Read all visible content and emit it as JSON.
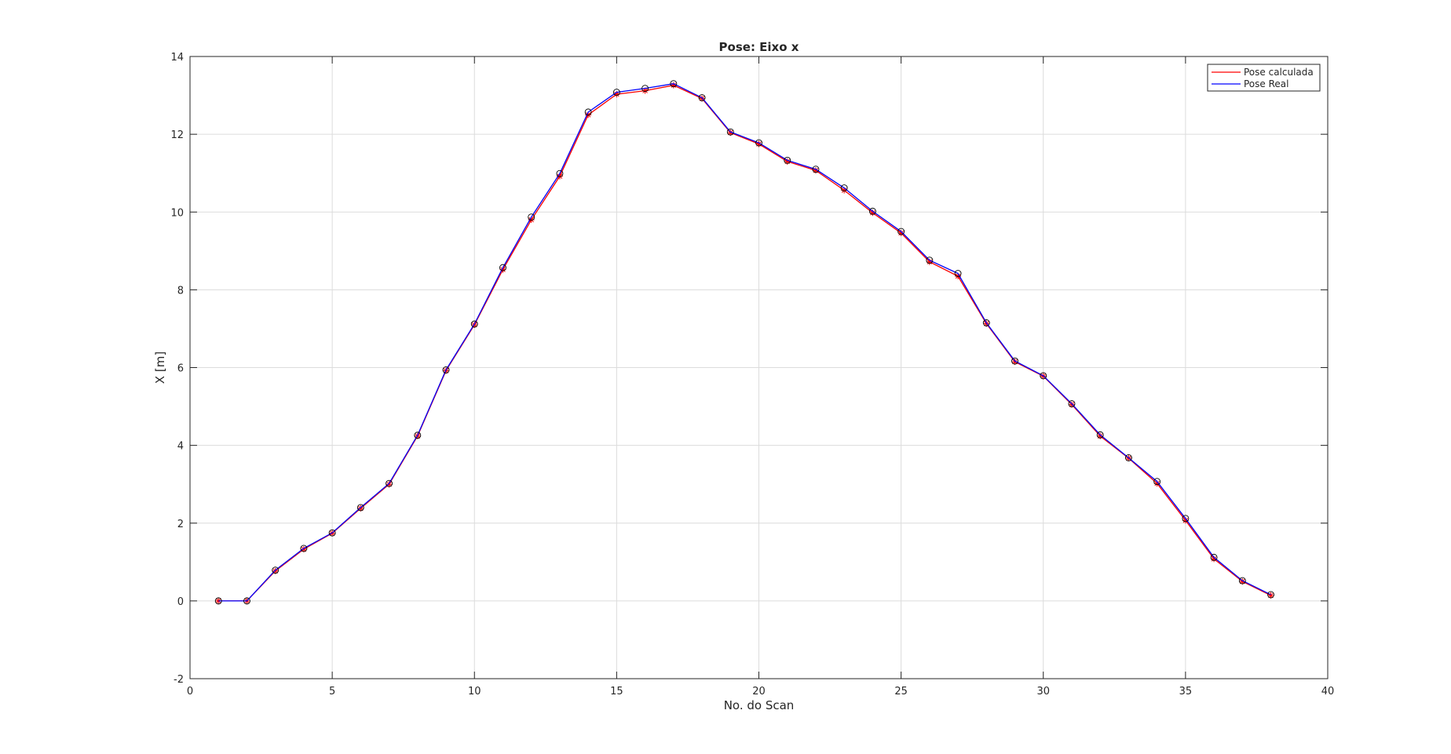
{
  "chart_data": {
    "type": "line",
    "title": "Pose: Eixo x",
    "xlabel": "No. do Scan",
    "ylabel": "X [m]",
    "xlim": [
      0,
      40
    ],
    "ylim": [
      -2,
      14
    ],
    "xticks": [
      0,
      5,
      10,
      15,
      20,
      25,
      30,
      35,
      40
    ],
    "yticks": [
      -2,
      0,
      2,
      4,
      6,
      8,
      10,
      12,
      14
    ],
    "grid": true,
    "legend_position": "top-right",
    "x": [
      1,
      2,
      3,
      4,
      5,
      6,
      7,
      8,
      9,
      10,
      11,
      12,
      13,
      14,
      15,
      16,
      17,
      18,
      19,
      20,
      21,
      22,
      23,
      24,
      25,
      26,
      27,
      28,
      29,
      30,
      31,
      32,
      33,
      34,
      35,
      36,
      37,
      38
    ],
    "series": [
      {
        "name": "Pose calculada",
        "color": "#ff0000",
        "marker": "star",
        "values": [
          0.0,
          0.0,
          0.77,
          1.33,
          1.74,
          2.38,
          3.0,
          4.24,
          5.92,
          7.1,
          8.52,
          9.8,
          10.92,
          12.5,
          13.03,
          13.12,
          13.26,
          12.92,
          12.04,
          11.75,
          11.3,
          11.07,
          10.56,
          9.98,
          9.46,
          8.72,
          8.35,
          7.13,
          6.15,
          5.78,
          5.05,
          4.24,
          3.67,
          3.02,
          2.07,
          1.08,
          0.5,
          0.14
        ]
      },
      {
        "name": "Pose Real",
        "color": "#0000ff",
        "marker": "circle",
        "values": [
          0.0,
          0.0,
          0.79,
          1.35,
          1.75,
          2.4,
          3.02,
          4.26,
          5.94,
          7.12,
          8.57,
          9.87,
          10.99,
          12.57,
          13.08,
          13.18,
          13.3,
          12.94,
          12.06,
          11.78,
          11.33,
          11.1,
          10.62,
          10.02,
          9.5,
          8.76,
          8.42,
          7.15,
          6.17,
          5.79,
          5.07,
          4.27,
          3.68,
          3.07,
          2.12,
          1.12,
          0.52,
          0.16
        ]
      }
    ]
  }
}
